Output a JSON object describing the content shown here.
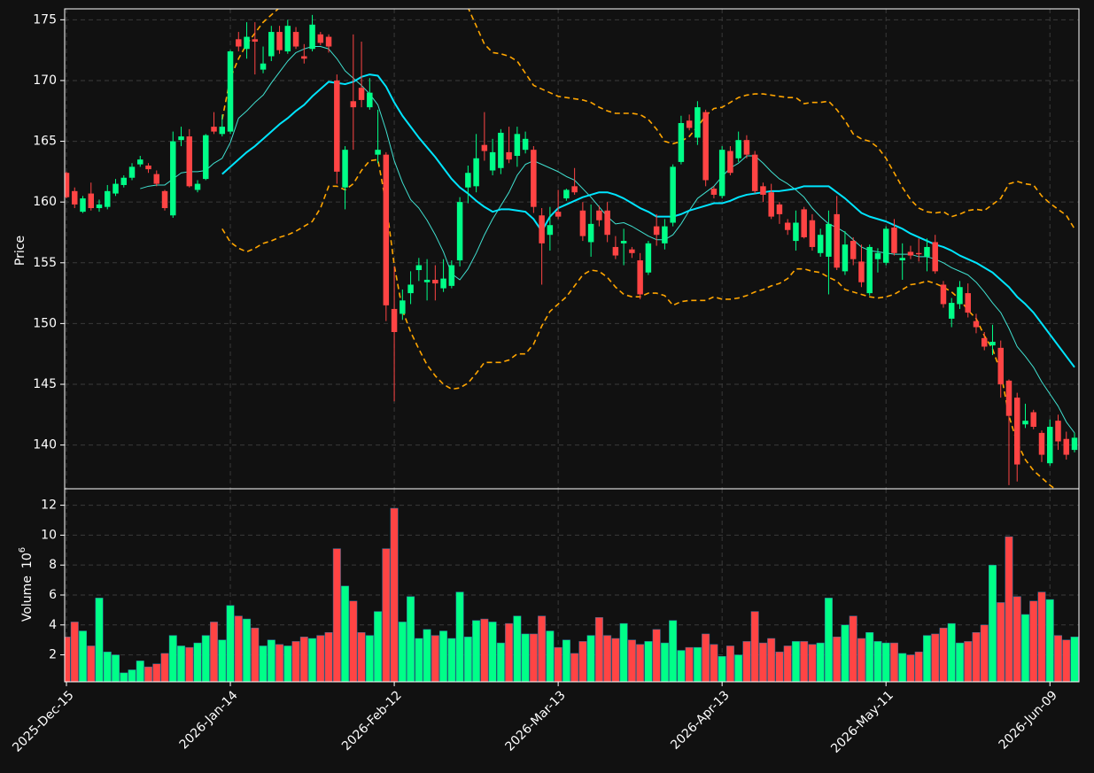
{
  "chart_data": {
    "type": "candlestick",
    "ylabel": "Price",
    "categories": [
      "2025-Dec-15",
      null,
      null,
      null,
      null,
      null,
      null,
      null,
      null,
      null,
      null,
      null,
      null,
      null,
      null,
      null,
      null,
      null,
      null,
      null,
      "2026-Jan-14",
      null,
      null,
      null,
      null,
      null,
      null,
      null,
      null,
      null,
      null,
      null,
      null,
      null,
      null,
      null,
      null,
      null,
      null,
      null,
      "2026-Feb-12",
      null,
      null,
      null,
      null,
      null,
      null,
      null,
      null,
      null,
      null,
      null,
      null,
      null,
      null,
      null,
      null,
      null,
      null,
      null,
      "2026-Mar-13",
      null,
      null,
      null,
      null,
      null,
      null,
      null,
      null,
      null,
      null,
      null,
      null,
      null,
      null,
      null,
      null,
      null,
      null,
      null,
      "2026-Apr-13",
      null,
      null,
      null,
      null,
      null,
      null,
      null,
      null,
      null,
      null,
      null,
      null,
      null,
      null,
      null,
      null,
      null,
      null,
      null,
      "2026-May-11",
      null,
      null,
      null,
      null,
      null,
      null,
      null,
      null,
      null,
      null,
      null,
      null,
      null,
      null,
      null,
      null,
      null,
      null,
      null,
      "2026-Jun-09",
      null,
      null,
      null
    ],
    "open": [
      162.4,
      160.9,
      159.2,
      160.7,
      159.5,
      159.6,
      160.7,
      161.4,
      162,
      163.1,
      163,
      162.3,
      160.9,
      158.9,
      165.1,
      165.4,
      161,
      161.9,
      166.2,
      165.6,
      165.8,
      173.4,
      172.6,
      173.4,
      170.9,
      172,
      174,
      172.4,
      174,
      172,
      172.6,
      173.8,
      173.6,
      170,
      161.2,
      168.3,
      169.4,
      167.8,
      163.9,
      163.9,
      151.2,
      150.8,
      152.5,
      154.4,
      153.4,
      153.6,
      152.9,
      153.1,
      155.2,
      161.2,
      161.3,
      164.7,
      162.6,
      162.8,
      164.1,
      163.8,
      164.3,
      164.3,
      158.9,
      157.3,
      159.2,
      160.3,
      161.3,
      159.3,
      156.7,
      159.3,
      159.3,
      156.3,
      156.6,
      156.1,
      155.2,
      154.2,
      158,
      156.6,
      158.3,
      163.3,
      166.7,
      165.3,
      167.4,
      161.1,
      160.5,
      164.2,
      163.6,
      165.1,
      163.9,
      161.3,
      160.8,
      159.8,
      158.3,
      156.8,
      159.4,
      158.5,
      155.8,
      155.5,
      159,
      154.3,
      156.8,
      155.1,
      152.5,
      155.3,
      155,
      157.9,
      155.2,
      155.9,
      155.8,
      155.5,
      156.7,
      153.2,
      150.4,
      151.6,
      152.5,
      150.2,
      148.8,
      148.2,
      148,
      145.3,
      143.9,
      141.7,
      142.7,
      141,
      138.5,
      142,
      140.5,
      139.6
    ],
    "high": [
      162.5,
      161.2,
      160.5,
      161.6,
      160.2,
      161.4,
      161.9,
      162.2,
      163.2,
      163.8,
      163.2,
      162.6,
      161,
      165.8,
      166.2,
      166,
      161.8,
      165.6,
      167.4,
      167.2,
      172.5,
      174,
      174.8,
      174.8,
      172.8,
      174.5,
      174.5,
      175,
      174.4,
      173,
      175.4,
      174,
      173.8,
      170.5,
      164.6,
      173.8,
      173.2,
      170.2,
      167.6,
      164.1,
      154.7,
      152.8,
      154.3,
      155.4,
      155.3,
      154.8,
      155.3,
      155.2,
      160.4,
      163,
      165.6,
      167.4,
      165.2,
      166,
      166.2,
      166.2,
      165.8,
      164.6,
      159.5,
      159.6,
      161,
      161.1,
      162.8,
      160,
      159.8,
      159.7,
      160,
      157.2,
      157.8,
      156.3,
      155.8,
      156.8,
      159,
      158.6,
      163.1,
      167.1,
      167.2,
      168.3,
      167.6,
      161.3,
      164.6,
      164.6,
      165.8,
      165.5,
      164.2,
      161.6,
      161.5,
      160,
      158.6,
      159.3,
      159.6,
      159,
      157.8,
      159.3,
      160.5,
      157.6,
      157.1,
      156.5,
      156.5,
      156.2,
      158,
      158.6,
      156.6,
      156.4,
      157,
      157,
      157.3,
      153.5,
      152.1,
      153.5,
      153.3,
      150.8,
      149.3,
      149.9,
      148.6,
      145.4,
      144.3,
      143.4,
      142.9,
      141.2,
      142.1,
      142.5,
      141.1,
      141
    ],
    "low": [
      160.3,
      159.5,
      159.1,
      159.3,
      159.2,
      159.4,
      160.5,
      161.2,
      161.8,
      162.9,
      162.4,
      161.3,
      159.3,
      158.7,
      164.6,
      161.2,
      160.8,
      161.8,
      165.6,
      165.4,
      165.6,
      172.4,
      171.8,
      170.5,
      170.6,
      171.6,
      172.2,
      172.2,
      172.6,
      171.4,
      172.4,
      172.9,
      172.3,
      161.5,
      159.4,
      164.3,
      167.8,
      167.6,
      163.2,
      150.2,
      143.6,
      150.3,
      151.6,
      153.5,
      151.9,
      151.9,
      152.6,
      152.9,
      154.7,
      159.9,
      160.8,
      163.4,
      162.2,
      162.3,
      163.2,
      162.9,
      164,
      159.1,
      153.2,
      156,
      158.6,
      160.1,
      160.6,
      156.8,
      155.5,
      158,
      156.7,
      155.3,
      154.8,
      155.4,
      152,
      154,
      156.4,
      156.1,
      158,
      163.1,
      165.9,
      164.7,
      161.3,
      160.3,
      160.3,
      162.2,
      163.3,
      163.6,
      160.7,
      160,
      158.6,
      158.2,
      157.3,
      156,
      157,
      156,
      155.5,
      152.4,
      154.4,
      154,
      154.8,
      153,
      152.3,
      154.2,
      154.8,
      155.6,
      153.6,
      155.3,
      155.1,
      154.3,
      154.1,
      151.3,
      149.7,
      151.2,
      150.5,
      149.2,
      147.8,
      147.4,
      143.9,
      136.7,
      137,
      141.4,
      141.3,
      138.6,
      138.3,
      139.6,
      138.8,
      139.4
    ],
    "close": [
      160.4,
      159.8,
      160.3,
      159.5,
      159.8,
      160.9,
      161.5,
      162,
      162.9,
      163.5,
      162.7,
      161.5,
      159.5,
      165,
      165.4,
      161.3,
      161.5,
      165.5,
      165.8,
      166.2,
      172.4,
      172.8,
      173.6,
      173.2,
      171.4,
      174,
      172.5,
      174.5,
      172.8,
      171.8,
      174.6,
      173.1,
      172.8,
      162.5,
      164.3,
      167.8,
      168.4,
      169,
      164.3,
      151.5,
      149.3,
      151.9,
      153.2,
      154.8,
      153.6,
      153.3,
      153.7,
      154.8,
      160,
      162.4,
      163.6,
      164.2,
      164.1,
      165.7,
      163.5,
      165.6,
      165.2,
      159.6,
      156.6,
      158.1,
      158.8,
      161,
      160.8,
      157.2,
      158.2,
      158.5,
      157.3,
      155.6,
      156.8,
      155.8,
      152.4,
      156.6,
      157.3,
      158,
      162.9,
      166.5,
      166.1,
      167.8,
      161.8,
      160.6,
      164.3,
      162.4,
      165.1,
      163.9,
      160.9,
      160.6,
      158.8,
      159,
      157.7,
      158.3,
      157.1,
      156.3,
      157.3,
      158.2,
      154.6,
      156.5,
      155.3,
      153.4,
      156.3,
      155.8,
      157.8,
      155.8,
      155.4,
      155.6,
      155.7,
      156.3,
      154.3,
      151.6,
      151.7,
      153,
      150.9,
      149.7,
      148.1,
      148.5,
      145,
      142.4,
      138.4,
      142,
      141.5,
      139.2,
      141.5,
      140.3,
      139.2,
      140.6
    ],
    "up_color": "#00ff88",
    "down_color": "#ff4444",
    "ylim": [
      136.4,
      175.9
    ],
    "yticks": [
      140,
      145,
      150,
      155,
      160,
      165,
      170,
      175
    ],
    "grid": true,
    "overlays": [
      {
        "color": "#40e0d0",
        "width": 1,
        "dash": false,
        "values": [
          null,
          null,
          null,
          null,
          null,
          null,
          null,
          null,
          null,
          161.1,
          161.3,
          161.4,
          161.4,
          161.9,
          162.4,
          162.5,
          162.5,
          162.6,
          163.2,
          163.6,
          164.9,
          166.9,
          167.5,
          168.2,
          168.8,
          169.8,
          170.7,
          171.6,
          172.3,
          172.6,
          172.8,
          172.8,
          172.6,
          171.8,
          170.8,
          170.2,
          169.6,
          168.9,
          168,
          165.9,
          163.4,
          161.6,
          160.2,
          159.5,
          158.5,
          157.3,
          155.9,
          154.1,
          153.6,
          154.5,
          155.8,
          157.3,
          158.6,
          159.7,
          160.8,
          162.2,
          163.1,
          163.4,
          163.1,
          162.8,
          162.5,
          162.1,
          161.8,
          161.1,
          160.4,
          159.6,
          158.8,
          158.2,
          158.3,
          158,
          157.6,
          157.2,
          156.9,
          156.9,
          157.3,
          158.2,
          159.3,
          160.3,
          160.8,
          161.3,
          162.1,
          162.8,
          163.2,
          163.8,
          163.8,
          163.2,
          162.5,
          161.9,
          161.5,
          161,
          160.4,
          159.5,
          158.8,
          158.2,
          157.9,
          157.5,
          156.9,
          156.3,
          156,
          155.9,
          155.8,
          155.7,
          155.7,
          155.7,
          155.5,
          155.5,
          155.3,
          155,
          154.6,
          154.3,
          154,
          153.4,
          152.6,
          151.7,
          150.9,
          149.6,
          148.1,
          147.3,
          146.4,
          145.2,
          144.2,
          143.2,
          141.9,
          141
        ]
      },
      {
        "color": "#00e5ff",
        "width": 2,
        "dash": false,
        "values": [
          null,
          null,
          null,
          null,
          null,
          null,
          null,
          null,
          null,
          null,
          null,
          null,
          null,
          null,
          null,
          null,
          null,
          null,
          null,
          162.3,
          162.9,
          163.5,
          164.1,
          164.6,
          165.2,
          165.8,
          166.4,
          166.9,
          167.5,
          168,
          168.7,
          169.3,
          169.9,
          169.8,
          169.7,
          169.9,
          170.3,
          170.5,
          170.4,
          169.5,
          168.2,
          167.1,
          166.2,
          165.3,
          164.5,
          163.7,
          162.8,
          161.9,
          161.2,
          160.7,
          160.1,
          159.6,
          159.2,
          159.4,
          159.4,
          159.3,
          159.2,
          158.6,
          157.6,
          158.8,
          159.5,
          159.8,
          160.1,
          160.4,
          160.6,
          160.8,
          160.8,
          160.6,
          160.3,
          159.9,
          159.5,
          159.2,
          158.8,
          158.8,
          158.8,
          159,
          159.3,
          159.5,
          159.7,
          159.9,
          159.9,
          160.1,
          160.4,
          160.6,
          160.7,
          160.8,
          160.9,
          160.9,
          161,
          161.1,
          161.3,
          161.3,
          161.3,
          161.3,
          160.8,
          160.3,
          159.7,
          159.1,
          158.8,
          158.6,
          158.4,
          158.1,
          157.8,
          157.4,
          157.1,
          156.8,
          156.5,
          156.3,
          156,
          155.6,
          155.3,
          155,
          154.6,
          154.2,
          153.6,
          153,
          152.2,
          151.6,
          150.9,
          150,
          149.1,
          148.2,
          147.3,
          146.4
        ]
      },
      {
        "color": "#ffa500",
        "width": 1.6,
        "dash": true,
        "values": [
          null,
          null,
          null,
          null,
          null,
          null,
          null,
          null,
          null,
          null,
          null,
          null,
          null,
          null,
          null,
          null,
          null,
          null,
          null,
          166.8,
          170.2,
          171.8,
          173,
          173.9,
          174.8,
          175.4,
          176,
          177.3,
          178.1,
          178.8,
          179.4,
          180,
          180.5,
          181,
          181.6,
          182.2,
          183,
          183.8,
          184.3,
          184.5,
          186,
          185.5,
          184.8,
          184,
          183,
          181.8,
          180.4,
          178.8,
          177.4,
          176,
          174.5,
          173,
          172.3,
          172.2,
          172,
          171.6,
          170.6,
          169.6,
          169.3,
          169,
          168.7,
          168.6,
          168.5,
          168.4,
          168.2,
          167.8,
          167.5,
          167.3,
          167.3,
          167.3,
          167.2,
          166.8,
          166,
          165,
          164.8,
          165,
          165.4,
          166.2,
          167.1,
          167.7,
          167.8,
          168.2,
          168.6,
          168.8,
          168.9,
          168.9,
          168.8,
          168.7,
          168.6,
          168.6,
          168.1,
          168.2,
          168.2,
          168.3,
          167.6,
          166.7,
          165.6,
          165.2,
          165,
          164.5,
          163.6,
          162.4,
          161.2,
          160.2,
          159.5,
          159.2,
          159.1,
          159.2,
          158.8,
          159,
          159.3,
          159.4,
          159.3,
          159.8,
          160.3,
          161.5,
          161.7,
          161.5,
          161.4,
          160.5,
          159.9,
          159.4,
          158.9,
          157.8
        ]
      },
      {
        "color": "#ffa500",
        "width": 1.6,
        "dash": true,
        "values": [
          null,
          null,
          null,
          null,
          null,
          null,
          null,
          null,
          null,
          null,
          null,
          null,
          null,
          null,
          null,
          null,
          null,
          null,
          null,
          157.8,
          156.7,
          156.2,
          155.9,
          156.2,
          156.6,
          156.8,
          157.1,
          157.3,
          157.6,
          158,
          158.4,
          159.5,
          161.3,
          161.3,
          161,
          161.5,
          162.6,
          163.4,
          163.5,
          159.9,
          154.8,
          151.1,
          149.3,
          147.9,
          146.6,
          145.7,
          145,
          144.6,
          144.7,
          145.1,
          145.9,
          146.8,
          146.8,
          146.8,
          147,
          147.5,
          147.5,
          148.3,
          149.8,
          151,
          151.6,
          152.2,
          153.1,
          154,
          154.4,
          154.3,
          153.8,
          153,
          152.4,
          152.2,
          152.2,
          152.5,
          152.5,
          152.3,
          151.5,
          151.8,
          151.9,
          151.9,
          151.9,
          152.2,
          152,
          152,
          152.1,
          152.3,
          152.6,
          152.8,
          153.1,
          153.3,
          153.7,
          154.5,
          154.5,
          154.3,
          154.2,
          153.8,
          153.5,
          152.8,
          152.6,
          152.4,
          152.2,
          152.1,
          152.2,
          152.4,
          152.8,
          153.2,
          153.3,
          153.5,
          153.3,
          153,
          152.6,
          152,
          151.1,
          150.4,
          149,
          147.9,
          146,
          142.4,
          140.2,
          138.8,
          137.9,
          137.3,
          136.7,
          136.2,
          135.8,
          135.4
        ]
      }
    ],
    "volume": {
      "ylabel": "Volume",
      "offset_base": "10",
      "offset_exponent": "6",
      "values": [
        3.2,
        4.2,
        3.6,
        2.6,
        5.8,
        2.2,
        2.0,
        0.8,
        1.0,
        1.6,
        1.2,
        1.4,
        2.1,
        3.3,
        2.6,
        2.5,
        2.8,
        3.3,
        4.2,
        3.0,
        5.3,
        4.6,
        4.4,
        3.8,
        2.6,
        3.0,
        2.7,
        2.6,
        2.9,
        3.2,
        3.1,
        3.3,
        3.5,
        9.1,
        6.6,
        5.6,
        3.5,
        3.3,
        4.9,
        9.1,
        11.8,
        4.2,
        5.9,
        3.1,
        3.7,
        3.3,
        3.6,
        3.1,
        6.2,
        3.2,
        4.3,
        4.4,
        4.2,
        2.8,
        4.1,
        4.6,
        3.4,
        3.4,
        4.6,
        3.6,
        2.5,
        3.0,
        2.1,
        2.9,
        3.3,
        4.5,
        3.3,
        3.1,
        4.1,
        3.0,
        2.7,
        2.9,
        3.7,
        2.8,
        4.3,
        2.3,
        2.5,
        2.5,
        3.4,
        2.7,
        1.9,
        2.6,
        2.0,
        2.9,
        4.9,
        2.8,
        3.1,
        2.2,
        2.6,
        2.9,
        2.9,
        2.7,
        2.8,
        5.8,
        3.2,
        4.0,
        4.6,
        3.1,
        3.5,
        2.9,
        2.8,
        2.8,
        2.1,
        2.0,
        2.2,
        3.3,
        3.4,
        3.8,
        4.1,
        2.8,
        2.9,
        3.5,
        4.0,
        8.0,
        5.5,
        9.9,
        5.9,
        4.7,
        5.6,
        6.2,
        5.7,
        3.3,
        3.0,
        3.2
      ],
      "ylim": [
        0.2,
        13.1
      ],
      "yticks": [
        2,
        4,
        6,
        8,
        10,
        12
      ]
    }
  }
}
